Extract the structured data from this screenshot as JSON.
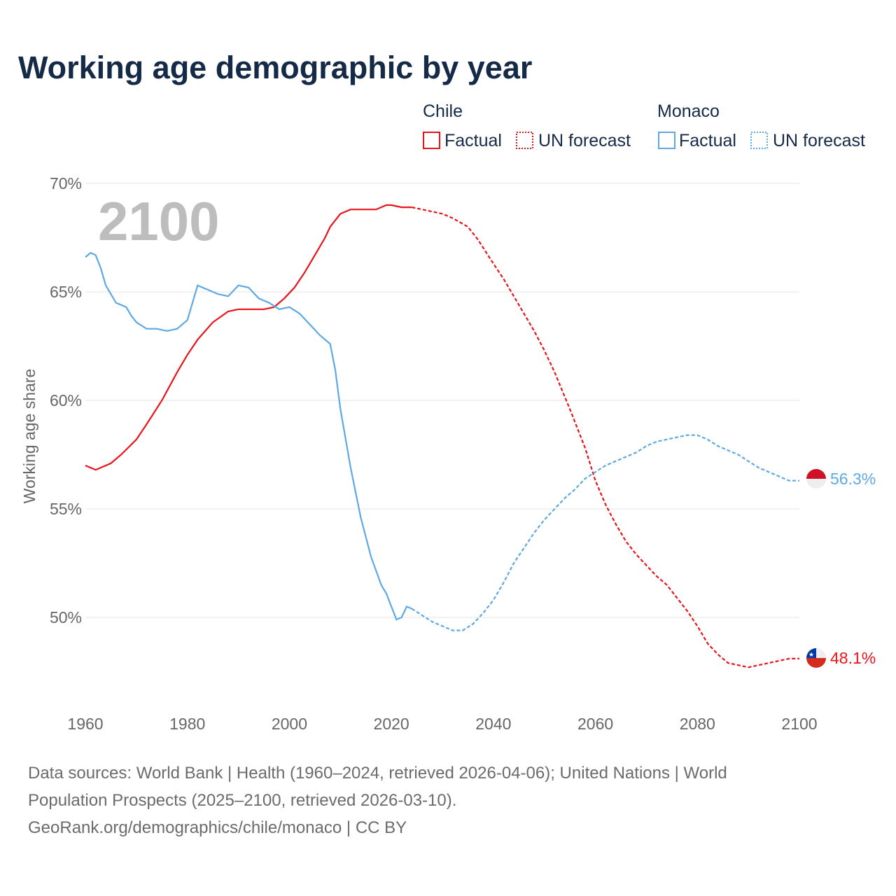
{
  "chart_data": {
    "type": "line",
    "title": "Working age demographic by year",
    "ylabel": "Working age share",
    "xlabel": "",
    "xlim": [
      1960,
      2100
    ],
    "ylim": [
      46,
      70
    ],
    "x_ticks": [
      1960,
      1980,
      2000,
      2020,
      2040,
      2060,
      2080,
      2100
    ],
    "x_tick_labels": [
      "1960",
      "1980",
      "2000",
      "2020",
      "2040",
      "2060",
      "2080",
      "2100"
    ],
    "y_ticks": [
      50,
      55,
      60,
      65,
      70
    ],
    "y_tick_labels": [
      "50%",
      "55%",
      "60%",
      "65%",
      "70%"
    ],
    "current_year_label": "2100",
    "legend": {
      "groups": [
        {
          "name": "Chile",
          "factual_label": "Factual",
          "forecast_label": "UN forecast",
          "color": "#e8141b"
        },
        {
          "name": "Monaco",
          "factual_label": "Factual",
          "forecast_label": "UN forecast",
          "color": "#5ea8e3"
        }
      ]
    },
    "series": [
      {
        "name": "Chile",
        "color": "#e8141b",
        "end_label": "48.1%",
        "factual": [
          [
            1960,
            57.0
          ],
          [
            1962,
            56.8
          ],
          [
            1965,
            57.1
          ],
          [
            1967,
            57.5
          ],
          [
            1970,
            58.2
          ],
          [
            1972,
            58.9
          ],
          [
            1975,
            60.0
          ],
          [
            1978,
            61.3
          ],
          [
            1980,
            62.1
          ],
          [
            1982,
            62.8
          ],
          [
            1985,
            63.6
          ],
          [
            1988,
            64.1
          ],
          [
            1990,
            64.2
          ],
          [
            1993,
            64.2
          ],
          [
            1995,
            64.2
          ],
          [
            1997,
            64.3
          ],
          [
            1999,
            64.7
          ],
          [
            2001,
            65.2
          ],
          [
            2003,
            65.9
          ],
          [
            2005,
            66.7
          ],
          [
            2007,
            67.5
          ],
          [
            2008,
            68.0
          ],
          [
            2010,
            68.6
          ],
          [
            2012,
            68.8
          ],
          [
            2015,
            68.8
          ],
          [
            2017,
            68.8
          ],
          [
            2019,
            69.0
          ],
          [
            2020,
            69.0
          ],
          [
            2022,
            68.9
          ],
          [
            2024,
            68.9
          ]
        ],
        "forecast": [
          [
            2024,
            68.9
          ],
          [
            2026,
            68.8
          ],
          [
            2028,
            68.7
          ],
          [
            2030,
            68.6
          ],
          [
            2032,
            68.4
          ],
          [
            2035,
            68.0
          ],
          [
            2037,
            67.4
          ],
          [
            2040,
            66.3
          ],
          [
            2042,
            65.6
          ],
          [
            2045,
            64.4
          ],
          [
            2048,
            63.2
          ],
          [
            2050,
            62.3
          ],
          [
            2052,
            61.3
          ],
          [
            2055,
            59.6
          ],
          [
            2058,
            57.8
          ],
          [
            2060,
            56.3
          ],
          [
            2062,
            55.2
          ],
          [
            2064,
            54.3
          ],
          [
            2066,
            53.5
          ],
          [
            2068,
            52.9
          ],
          [
            2070,
            52.4
          ],
          [
            2072,
            51.9
          ],
          [
            2074,
            51.5
          ],
          [
            2076,
            50.9
          ],
          [
            2078,
            50.3
          ],
          [
            2080,
            49.6
          ],
          [
            2082,
            48.8
          ],
          [
            2084,
            48.3
          ],
          [
            2086,
            47.9
          ],
          [
            2088,
            47.8
          ],
          [
            2090,
            47.7
          ],
          [
            2092,
            47.8
          ],
          [
            2094,
            47.9
          ],
          [
            2096,
            48.0
          ],
          [
            2098,
            48.1
          ],
          [
            2100,
            48.1
          ]
        ]
      },
      {
        "name": "Monaco",
        "color": "#5ea8e3",
        "end_label": "56.3%",
        "factual": [
          [
            1960,
            66.6
          ],
          [
            1961,
            66.8
          ],
          [
            1962,
            66.7
          ],
          [
            1963,
            66.1
          ],
          [
            1964,
            65.3
          ],
          [
            1966,
            64.5
          ],
          [
            1968,
            64.3
          ],
          [
            1969,
            63.9
          ],
          [
            1970,
            63.6
          ],
          [
            1972,
            63.3
          ],
          [
            1974,
            63.3
          ],
          [
            1976,
            63.2
          ],
          [
            1978,
            63.3
          ],
          [
            1980,
            63.7
          ],
          [
            1982,
            65.3
          ],
          [
            1984,
            65.1
          ],
          [
            1986,
            64.9
          ],
          [
            1988,
            64.8
          ],
          [
            1990,
            65.3
          ],
          [
            1992,
            65.2
          ],
          [
            1994,
            64.7
          ],
          [
            1996,
            64.5
          ],
          [
            1998,
            64.2
          ],
          [
            2000,
            64.3
          ],
          [
            2002,
            64.0
          ],
          [
            2004,
            63.5
          ],
          [
            2006,
            63.0
          ],
          [
            2008,
            62.6
          ],
          [
            2009,
            61.4
          ],
          [
            2010,
            59.6
          ],
          [
            2012,
            56.9
          ],
          [
            2014,
            54.6
          ],
          [
            2016,
            52.8
          ],
          [
            2018,
            51.5
          ],
          [
            2019,
            51.1
          ],
          [
            2020,
            50.5
          ],
          [
            2021,
            49.9
          ],
          [
            2022,
            50.0
          ],
          [
            2023,
            50.5
          ],
          [
            2024,
            50.4
          ]
        ],
        "forecast": [
          [
            2024,
            50.4
          ],
          [
            2026,
            50.1
          ],
          [
            2028,
            49.8
          ],
          [
            2030,
            49.6
          ],
          [
            2032,
            49.4
          ],
          [
            2034,
            49.4
          ],
          [
            2036,
            49.7
          ],
          [
            2038,
            50.2
          ],
          [
            2040,
            50.8
          ],
          [
            2042,
            51.6
          ],
          [
            2044,
            52.5
          ],
          [
            2046,
            53.2
          ],
          [
            2048,
            53.9
          ],
          [
            2050,
            54.5
          ],
          [
            2052,
            55.0
          ],
          [
            2054,
            55.5
          ],
          [
            2056,
            55.9
          ],
          [
            2058,
            56.4
          ],
          [
            2060,
            56.7
          ],
          [
            2062,
            57.0
          ],
          [
            2064,
            57.2
          ],
          [
            2066,
            57.4
          ],
          [
            2068,
            57.6
          ],
          [
            2070,
            57.9
          ],
          [
            2072,
            58.1
          ],
          [
            2074,
            58.2
          ],
          [
            2076,
            58.3
          ],
          [
            2078,
            58.4
          ],
          [
            2080,
            58.4
          ],
          [
            2082,
            58.2
          ],
          [
            2084,
            57.9
          ],
          [
            2086,
            57.7
          ],
          [
            2088,
            57.5
          ],
          [
            2090,
            57.2
          ],
          [
            2092,
            56.9
          ],
          [
            2094,
            56.7
          ],
          [
            2096,
            56.5
          ],
          [
            2098,
            56.3
          ],
          [
            2100,
            56.3
          ]
        ]
      }
    ]
  },
  "footer": {
    "line1": "Data sources: World Bank | Health (1960–2024, retrieved 2026-04-06); United Nations | World",
    "line2": "Population Prospects (2025–2100, retrieved 2026-03-10).",
    "line3": "GeoRank.org/demographics/chile/monaco | CC BY"
  }
}
